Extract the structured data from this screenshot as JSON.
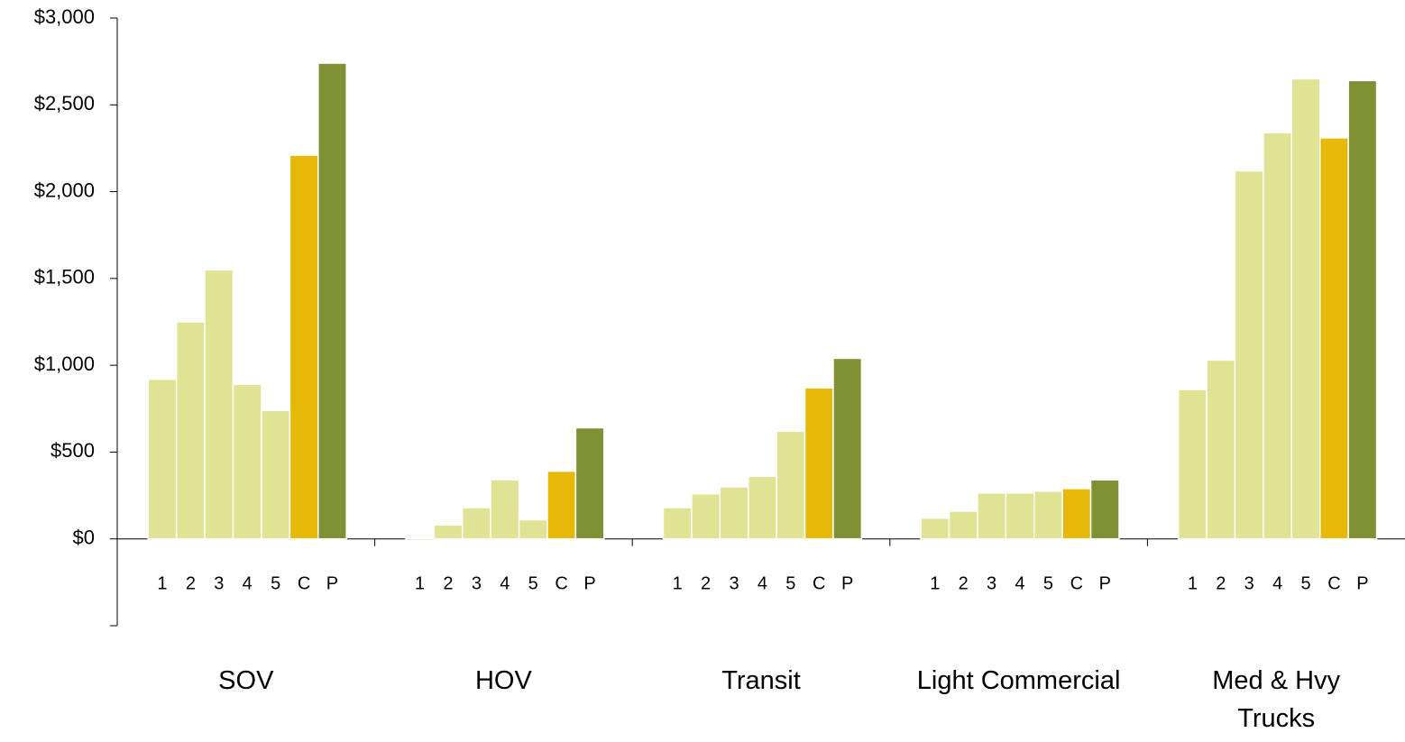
{
  "chart_data": {
    "type": "bar",
    "categories": [
      "SOV",
      "HOV",
      "Transit",
      "Light Commercial",
      "Med & Hvy\nTrucks"
    ],
    "series": [
      {
        "name": "1",
        "color": "#e0e394",
        "values": [
          920,
          -10,
          180,
          120,
          860
        ]
      },
      {
        "name": "2",
        "color": "#e0e394",
        "values": [
          1250,
          80,
          260,
          160,
          1030
        ]
      },
      {
        "name": "3",
        "color": "#e0e394",
        "values": [
          1550,
          180,
          300,
          265,
          2120
        ]
      },
      {
        "name": "4",
        "color": "#e0e394",
        "values": [
          890,
          340,
          360,
          265,
          2340
        ]
      },
      {
        "name": "5",
        "color": "#e0e394",
        "values": [
          740,
          110,
          620,
          275,
          2650
        ]
      },
      {
        "name": "C",
        "color": "#e6b909",
        "values": [
          2210,
          390,
          870,
          290,
          2310
        ]
      },
      {
        "name": "P",
        "color": "#7f9134",
        "values": [
          2740,
          640,
          1040,
          340,
          2640
        ]
      }
    ],
    "ylim": [
      -500,
      3000
    ],
    "yticks": [
      {
        "value": 0,
        "label": "$0"
      },
      {
        "value": 500,
        "label": "$500"
      },
      {
        "value": 1000,
        "label": "$1,000"
      },
      {
        "value": 1500,
        "label": "$1,500"
      },
      {
        "value": 2000,
        "label": "$2,000"
      },
      {
        "value": 2500,
        "label": "$2,500"
      },
      {
        "value": 3000,
        "label": "$3,000"
      }
    ]
  }
}
